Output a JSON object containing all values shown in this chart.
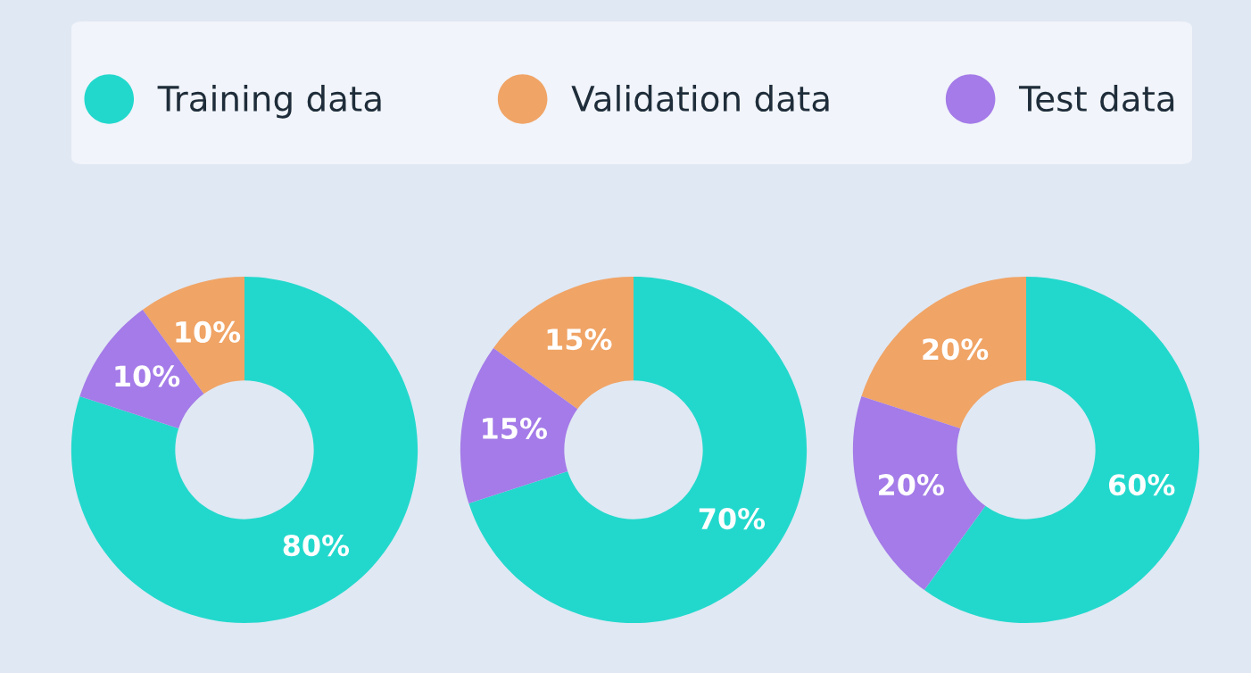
{
  "chart_data": [
    {
      "type": "donut",
      "categories": [
        "Training data",
        "Validation data",
        "Test data"
      ],
      "values": [
        80,
        10,
        10
      ],
      "colors": [
        "#22d8cc",
        "#f0a466",
        "#a47be8"
      ],
      "value_labels": [
        "80%",
        "10%",
        "10%"
      ],
      "legend": "top"
    },
    {
      "type": "donut",
      "categories": [
        null,
        null,
        null
      ],
      "values": [
        70,
        15,
        15
      ],
      "colors": [
        "#22d8cc",
        "#f0a466",
        "#a47be8"
      ],
      "value_labels": [
        "70%",
        "15%",
        "15%"
      ]
    },
    {
      "type": "donut",
      "categories": [
        null,
        null,
        null
      ],
      "values": [
        60,
        20,
        20
      ],
      "colors": [
        "#22d8cc",
        "#f0a466",
        "#a47be8"
      ],
      "value_labels": [
        "60%",
        "20%",
        "20%"
      ]
    }
  ]
}
